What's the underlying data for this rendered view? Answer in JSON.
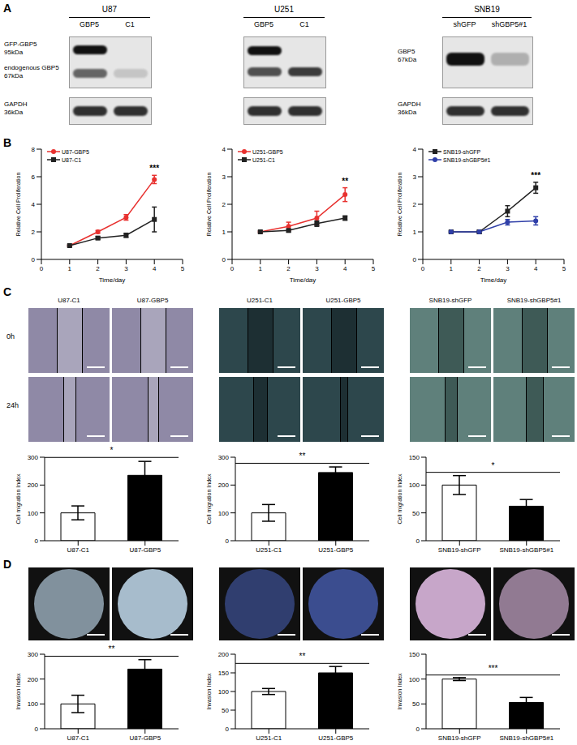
{
  "panel_labels": [
    "A",
    "B",
    "C",
    "D"
  ],
  "blots": [
    {
      "title": "U87",
      "lanes": [
        "GBP5",
        "C1"
      ],
      "markers": [
        {
          "name": "GFP-GBP5",
          "size": "95kDa"
        },
        {
          "name": "endogenous GBP5",
          "size": "67kDa"
        }
      ],
      "loading": {
        "name": "GAPDH",
        "size": "36kDa"
      }
    },
    {
      "title": "U251",
      "lanes": [
        "GBP5",
        "C1"
      ],
      "markers": [],
      "loading": null
    },
    {
      "title": "SNB19",
      "lanes": [
        "shGFP",
        "shGBP5#1"
      ],
      "markers": [
        {
          "name": "GBP5",
          "size": "67kDa"
        }
      ],
      "loading": {
        "name": "GAPDH",
        "size": "36kDa"
      }
    }
  ],
  "images": {
    "rows": [
      "0h",
      "24h"
    ],
    "groups": [
      [
        "U87-C1",
        "U87-GBP5"
      ],
      [
        "U251-C1",
        "U251-GBP5"
      ],
      [
        "SNB19-shGFP",
        "SNB19-shGBP5#1"
      ]
    ]
  },
  "chart_data": [
    {
      "type": "line",
      "xlabel": "Time/day",
      "ylabel": "Relative Cell Proliferation",
      "x": [
        1,
        2,
        3,
        4
      ],
      "xlim": [
        0,
        5
      ],
      "xticks": [
        0,
        1,
        2,
        3,
        4,
        5
      ],
      "ylim": [
        0,
        8
      ],
      "yticks": [
        0,
        2,
        4,
        6,
        8
      ],
      "legend": "upper left",
      "annotations": [
        "***"
      ],
      "series": [
        {
          "name": "U87-GBP5",
          "color": "#e8312f",
          "marker": "circle",
          "values": [
            1,
            2.0,
            3.05,
            5.8
          ],
          "errors": [
            0.05,
            0.1,
            0.2,
            0.3
          ]
        },
        {
          "name": "U87-C1",
          "color": "#222222",
          "marker": "square",
          "values": [
            1,
            1.55,
            1.75,
            2.9
          ],
          "errors": [
            0.05,
            0.1,
            0.15,
            0.9
          ]
        }
      ]
    },
    {
      "type": "line",
      "xlabel": "Time/day",
      "ylabel": "Relative Cell Proliferation",
      "x": [
        1,
        2,
        3,
        4
      ],
      "xlim": [
        0,
        5
      ],
      "xticks": [
        0,
        1,
        2,
        3,
        4,
        5
      ],
      "ylim": [
        0,
        4
      ],
      "yticks": [
        0,
        1,
        2,
        3,
        4
      ],
      "legend": "upper left",
      "annotations": [
        "**"
      ],
      "series": [
        {
          "name": "U251-GBP5",
          "color": "#e8312f",
          "marker": "circle",
          "values": [
            1,
            1.2,
            1.5,
            2.35
          ],
          "errors": [
            0.03,
            0.15,
            0.25,
            0.25
          ]
        },
        {
          "name": "U251-C1",
          "color": "#222222",
          "marker": "square",
          "values": [
            1,
            1.05,
            1.3,
            1.5
          ],
          "errors": [
            0.03,
            0.05,
            0.1,
            0.08
          ]
        }
      ]
    },
    {
      "type": "line",
      "xlabel": "Time/day",
      "ylabel": "Relative Cell Proliferation",
      "x": [
        1,
        2,
        3,
        4
      ],
      "xlim": [
        0,
        5
      ],
      "xticks": [
        0,
        1,
        2,
        3,
        4,
        5
      ],
      "ylim": [
        0,
        4
      ],
      "yticks": [
        0,
        1,
        2,
        3,
        4
      ],
      "legend": "upper left",
      "annotations": [
        "***"
      ],
      "series": [
        {
          "name": "SNB19-shGFP",
          "color": "#222222",
          "marker": "square",
          "values": [
            1,
            1.0,
            1.75,
            2.6
          ],
          "errors": [
            0.03,
            0.05,
            0.2,
            0.2
          ]
        },
        {
          "name": "SNB19-shGBP5#1",
          "color": "#2f3fa8",
          "marker": "circle",
          "values": [
            1,
            1.0,
            1.35,
            1.4
          ],
          "errors": [
            0.03,
            0.05,
            0.1,
            0.15
          ]
        }
      ]
    },
    {
      "type": "bar",
      "ylabel": "Cell migration Index",
      "categories": [
        "U87-C1",
        "U87-GBP5"
      ],
      "values": [
        100,
        235
      ],
      "errors": [
        25,
        50
      ],
      "colors": [
        "#ffffff",
        "#000000"
      ],
      "ylim": [
        0,
        300
      ],
      "yticks": [
        0,
        100,
        200,
        300
      ],
      "annotations": [
        "*"
      ]
    },
    {
      "type": "bar",
      "ylabel": "Cell migration Index",
      "categories": [
        "U251-C1",
        "U251-GBP5"
      ],
      "values": [
        100,
        245
      ],
      "errors": [
        30,
        20
      ],
      "colors": [
        "#ffffff",
        "#000000"
      ],
      "ylim": [
        0,
        300
      ],
      "yticks": [
        0,
        100,
        200,
        300
      ],
      "annotations": [
        "**"
      ]
    },
    {
      "type": "bar",
      "ylabel": "Cell migration Index",
      "categories": [
        "SNB19-shGFP",
        "SNB19-shGBP5#1"
      ],
      "values": [
        100,
        62
      ],
      "errors": [
        17,
        12
      ],
      "colors": [
        "#ffffff",
        "#000000"
      ],
      "ylim": [
        0,
        150
      ],
      "yticks": [
        0,
        50,
        100,
        150
      ],
      "annotations": [
        "*"
      ]
    },
    {
      "type": "bar",
      "ylabel": "Invasion Index",
      "categories": [
        "U87-C1",
        "U87-GBP5"
      ],
      "values": [
        100,
        240
      ],
      "errors": [
        35,
        38
      ],
      "colors": [
        "#ffffff",
        "#000000"
      ],
      "ylim": [
        0,
        300
      ],
      "yticks": [
        0,
        100,
        200,
        300
      ],
      "annotations": [
        "**"
      ]
    },
    {
      "type": "bar",
      "ylabel": "Invasion Index",
      "categories": [
        "U251-C1",
        "U251-GBP5"
      ],
      "values": [
        100,
        150
      ],
      "errors": [
        8,
        17
      ],
      "colors": [
        "#ffffff",
        "#000000"
      ],
      "ylim": [
        0,
        200
      ],
      "yticks": [
        0,
        50,
        100,
        150,
        200
      ],
      "annotations": [
        "**"
      ]
    },
    {
      "type": "bar",
      "ylabel": "Invasion Index",
      "categories": [
        "SNB19-shGFP",
        "SNB19-shGBP5#1"
      ],
      "values": [
        100,
        53
      ],
      "errors": [
        3,
        10
      ],
      "colors": [
        "#ffffff",
        "#000000"
      ],
      "ylim": [
        0,
        150
      ],
      "yticks": [
        0,
        50,
        100,
        150
      ],
      "annotations": [
        "***"
      ]
    }
  ]
}
